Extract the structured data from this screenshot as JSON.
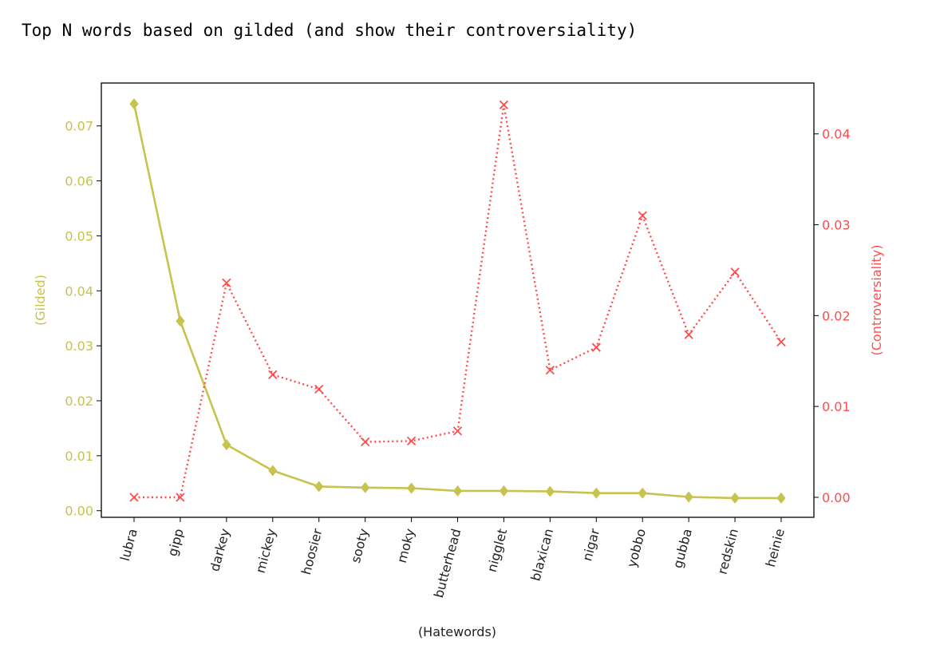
{
  "output": {
    "title": "Top N words based on gilded (and show their controversiality)"
  },
  "colors": {
    "gilded": "#c8c24e",
    "controversiality": "#ff4d4d",
    "frame": "#000000"
  },
  "chart_data": {
    "type": "line",
    "title": "",
    "xlabel": "(Hatewords)",
    "ylabel_left": "(Gilded)",
    "ylabel_right": "(Controversiality)",
    "categories": [
      "lubra",
      "gipp",
      "darkey",
      "mickey",
      "hoosier",
      "sooty",
      "moky",
      "butterhead",
      "nigglet",
      "blaxican",
      "nigar",
      "yobbo",
      "gubba",
      "redskin",
      "heinie"
    ],
    "ylim_left": [
      -0.0012,
      0.0778
    ],
    "ylim_right": [
      -0.0022,
      0.0456
    ],
    "yticks_left": [
      "0.00",
      "0.01",
      "0.02",
      "0.03",
      "0.04",
      "0.05",
      "0.06",
      "0.07"
    ],
    "yticks_right": [
      "0.00",
      "0.01",
      "0.02",
      "0.03",
      "0.04"
    ],
    "grid": false,
    "legend": "none",
    "series": [
      {
        "axis": "left",
        "marker": "diamond",
        "style": "solid",
        "values": [
          0.074,
          0.0345,
          0.012,
          0.0073,
          0.0044,
          0.0042,
          0.0041,
          0.0036,
          0.0036,
          0.0035,
          0.0032,
          0.0032,
          0.0025,
          0.0023,
          0.0023
        ]
      },
      {
        "axis": "right",
        "marker": "x",
        "style": "dotted",
        "values": [
          0.0,
          0.0,
          0.0236,
          0.0135,
          0.0119,
          0.0061,
          0.0062,
          0.0073,
          0.0432,
          0.014,
          0.0165,
          0.031,
          0.0179,
          0.0248,
          0.0171
        ]
      }
    ]
  }
}
